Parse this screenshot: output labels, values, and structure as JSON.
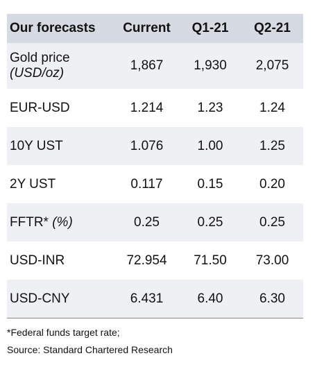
{
  "table": {
    "header": [
      "Our forecasts",
      "Current",
      "Q1-21",
      "Q2-21"
    ],
    "rows": [
      {
        "label": "Gold price",
        "note": "(USD/oz)",
        "values": [
          "1,867",
          "1,930",
          "2,075"
        ]
      },
      {
        "label": "EUR-USD",
        "values": [
          "1.214",
          "1.23",
          "1.24"
        ]
      },
      {
        "label": "10Y UST",
        "values": [
          "1.076",
          "1.00",
          "1.25"
        ]
      },
      {
        "label": "2Y UST",
        "values": [
          "0.117",
          "0.15",
          "0.20"
        ]
      },
      {
        "label": "FFTR*",
        "note": "(%)",
        "values": [
          "0.25",
          "0.25",
          "0.25"
        ]
      },
      {
        "label": "USD-INR",
        "values": [
          "72.954",
          "71.50",
          "73.00"
        ]
      },
      {
        "label": "USD-CNY",
        "values": [
          "6.431",
          "6.40",
          "6.30"
        ]
      }
    ]
  },
  "footnotes": [
    "*Federal funds target rate;",
    "Source: Standard Chartered Research"
  ]
}
